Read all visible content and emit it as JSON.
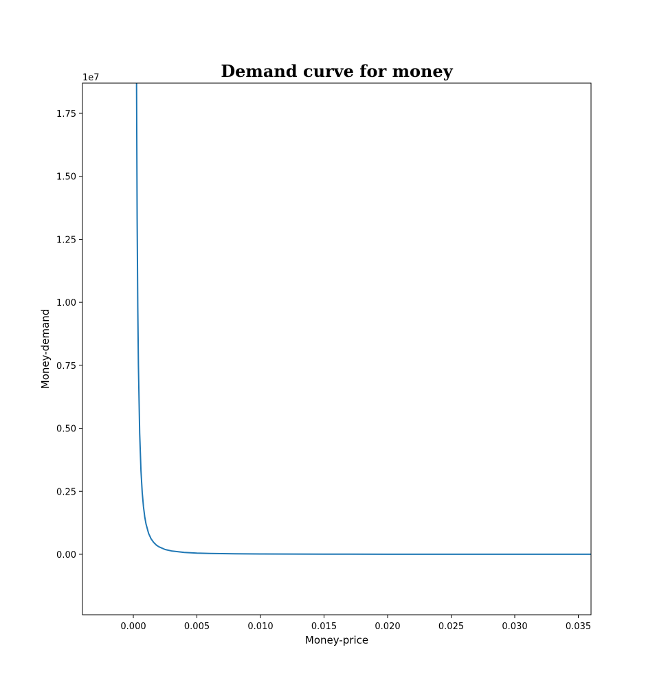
{
  "chart_data": {
    "type": "line",
    "title": "Demand curve for money",
    "xlabel": "Money-price",
    "ylabel": "Money-demand",
    "y_scale_label": "1e7",
    "xlim": [
      -0.004,
      0.036
    ],
    "ylim": [
      -2.4,
      18.7
    ],
    "x_ticks": [
      0.0,
      0.005,
      0.01,
      0.015,
      0.02,
      0.025,
      0.03,
      0.035
    ],
    "x_tick_labels": [
      "0.000",
      "0.005",
      "0.010",
      "0.015",
      "0.020",
      "0.025",
      "0.030",
      "0.035"
    ],
    "y_ticks": [
      0.0,
      2.5,
      5.0,
      7.5,
      10.0,
      12.5,
      15.0,
      17.5
    ],
    "y_tick_labels": [
      "0.00",
      "0.25",
      "0.50",
      "0.75",
      "1.00",
      "1.25",
      "1.50",
      "1.75"
    ],
    "grid": false,
    "series": [
      {
        "color": "#1f77b4",
        "x": [
          0.00025,
          0.0003,
          0.00035,
          0.0004,
          0.0005,
          0.0006,
          0.0007,
          0.0008,
          0.0009,
          0.001,
          0.0012,
          0.0014,
          0.0016,
          0.0018,
          0.002,
          0.0025,
          0.003,
          0.004,
          0.005,
          0.006,
          0.008,
          0.01,
          0.015,
          0.02,
          0.025,
          0.03,
          0.036
        ],
        "y": [
          19.2,
          13.3,
          9.8,
          7.5,
          4.8,
          3.33,
          2.45,
          1.88,
          1.48,
          1.2,
          0.83,
          0.61,
          0.47,
          0.37,
          0.3,
          0.19,
          0.133,
          0.075,
          0.048,
          0.033,
          0.019,
          0.012,
          0.005,
          0.003,
          0.002,
          0.001,
          0.001
        ]
      }
    ]
  }
}
